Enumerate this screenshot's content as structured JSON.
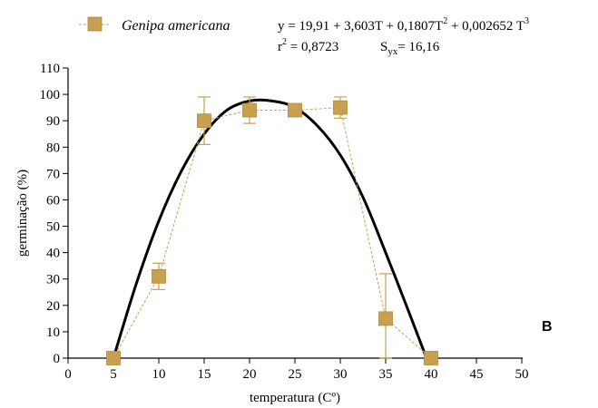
{
  "chart_data": {
    "type": "line",
    "xlabel": "temperatura (Cº)",
    "ylabel": "germinação (%)",
    "xlim": [
      0,
      50
    ],
    "ylim": [
      0,
      110
    ],
    "xticks": [
      0,
      5,
      10,
      15,
      20,
      25,
      30,
      35,
      40,
      45,
      50
    ],
    "yticks": [
      0,
      10,
      20,
      30,
      40,
      50,
      60,
      70,
      80,
      90,
      100,
      110
    ],
    "grid": false,
    "legend_position": "top-left",
    "panel_label": "B",
    "series": [
      {
        "name": "Genipa americana",
        "style": "markers-dashed",
        "color": "#C8A050",
        "x": [
          5,
          10,
          15,
          20,
          25,
          30,
          35,
          40
        ],
        "y": [
          0,
          31,
          90,
          94,
          94,
          95,
          15,
          0
        ],
        "err_low": [
          0,
          5,
          9,
          5,
          1,
          4,
          15,
          0
        ],
        "err_high": [
          0,
          5,
          9,
          5,
          1,
          4,
          17,
          0
        ]
      },
      {
        "style": "fitted-curve",
        "color": "#000000",
        "x": [
          5,
          7.5,
          10,
          12.5,
          15,
          17.5,
          20,
          22.5,
          25,
          27.5,
          30,
          32.5,
          35,
          37.5,
          39.5
        ],
        "y": [
          0,
          28,
          52,
          71,
          85,
          94,
          97.5,
          97.5,
          95,
          88,
          77,
          61,
          40,
          18,
          0
        ]
      }
    ],
    "equation": {
      "main": "y = 19,91 + 3,603T + 0,1807T",
      "exp1": "2",
      "mid": " + 0,002652 T",
      "exp2": "3",
      "r2_label": "r",
      "r2_exp": "2",
      "r2_value": " = 0,8723",
      "syx_label": "S",
      "syx_sub": "yx",
      "syx_value": "= 16,16"
    }
  }
}
